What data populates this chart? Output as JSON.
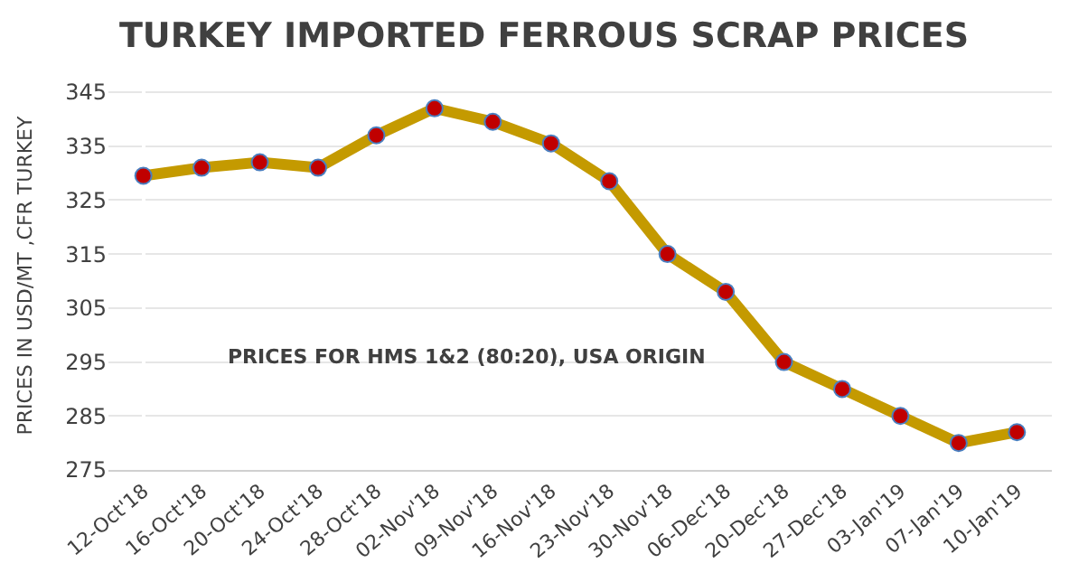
{
  "chart_data": {
    "type": "line",
    "title": "TURKEY IMPORTED FERROUS SCRAP PRICES",
    "ylabel": "PRICES IN USD/MT ,CFR TURKEY",
    "categories": [
      "12-Oct'18",
      "16-Oct'18",
      "20-Oct'18",
      "24-Oct'18",
      "28-Oct'18",
      "02-Nov'18",
      "09-Nov'18",
      "16-Nov'18",
      "23-Nov'18",
      "30-Nov'18",
      "06-Dec'18",
      "20-Dec'18",
      "27-Dec'18",
      "03-Jan'19",
      "07-Jan'19",
      "10-Jan'19"
    ],
    "series": [
      {
        "color": "#c49a00",
        "values": [
          329.5,
          331,
          332,
          331,
          337,
          342,
          339.5,
          335.5,
          328.5,
          315,
          308,
          295,
          290,
          285,
          280,
          282
        ]
      }
    ],
    "marker": "circle",
    "ylim": [
      275,
      347
    ],
    "yticks": [
      275,
      285,
      295,
      305,
      315,
      325,
      335,
      345
    ],
    "grid": "y",
    "annotations": [
      "PRICES FOR HMS 1&2 (80:20), USA ORIGIN"
    ]
  }
}
